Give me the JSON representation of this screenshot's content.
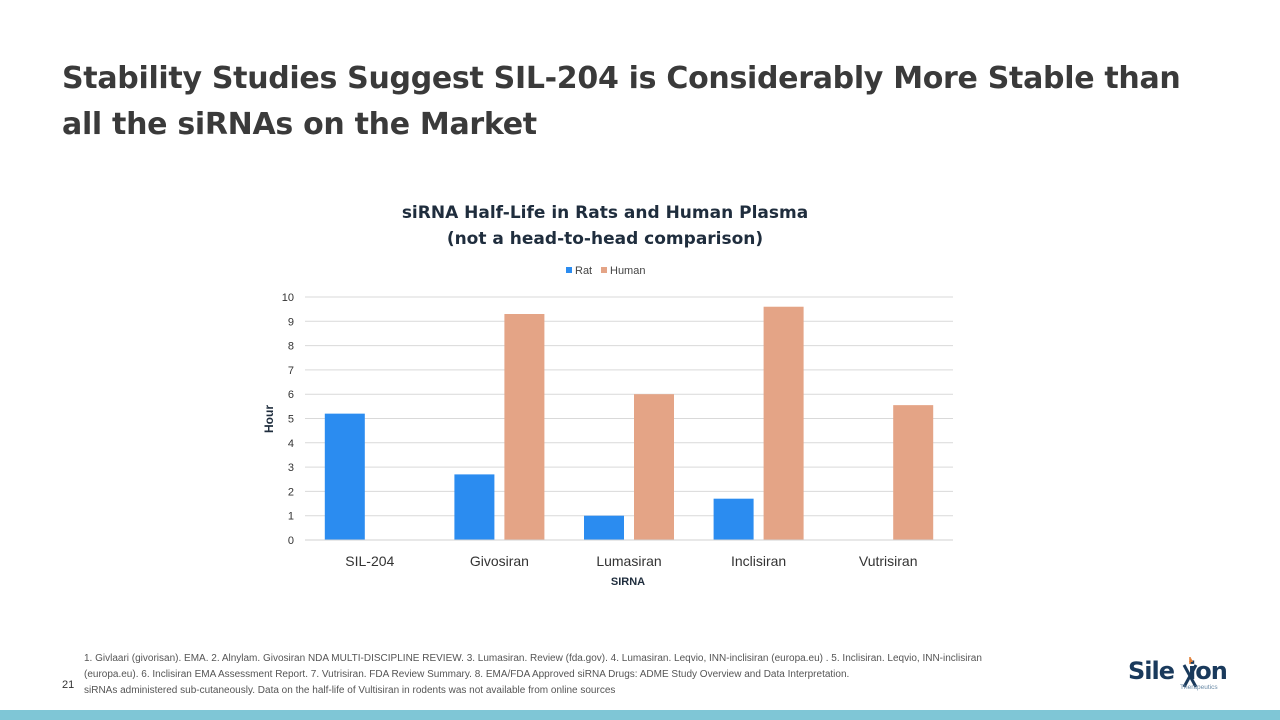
{
  "slide": {
    "title": "Stability Studies Suggest SIL-204 is Considerably More Stable than all the siRNAs on the Market",
    "page_number": "21",
    "footnotes": [
      "1. Givlaari (givorisan). EMA. 2. Alnylam. Givosiran NDA MULTI-DISCIPLINE REVIEW. 3. Lumasiran. Review (fda.gov). 4. Lumasiran. Leqvio, INN-inclisiran (europa.eu) . 5. Inclisiran. Leqvio, INN-inclisiran",
      "(europa.eu). 6. Inclisiran EMA Assessment Report. 7. Vutrisiran. FDA Review Summary. 8. EMA/FDA Approved siRNA Drugs: ADME Study Overview and Data Interpretation.",
      "siRNAs administered sub-cutaneously. Data on the half-life of Vultisiran in rodents was not available from online sources"
    ]
  },
  "logo": {
    "word_part1": "Sile",
    "word_part2": "ion",
    "subtitle": "Therapeutics",
    "mark_color": "#e07a2e",
    "text_color": "#1a3a5c"
  },
  "chart_data": {
    "type": "bar",
    "title": "siRNA Half-Life in Rats and Human Plasma",
    "subtitle": "(not a head-to-head comparison)",
    "xlabel": "SIRNA",
    "ylabel": "Hour",
    "ylim": [
      0,
      10
    ],
    "yticks": [
      0,
      1,
      2,
      3,
      4,
      5,
      6,
      7,
      8,
      9,
      10
    ],
    "grid": true,
    "legend_position": "top-center",
    "categories": [
      "SIL-204",
      "Givosiran",
      "Lumasiran",
      "Inclisiran",
      "Vutrisiran"
    ],
    "series": [
      {
        "name": "Rat",
        "color": "#2b8cf0",
        "values": [
          5.2,
          2.7,
          1.0,
          1.7,
          null
        ]
      },
      {
        "name": "Human",
        "color": "#e4a486",
        "values": [
          null,
          9.3,
          6.0,
          9.6,
          5.55
        ]
      }
    ]
  },
  "colors": {
    "bottom_bar": "#7fc6d6",
    "gridline": "#d9d9d9"
  }
}
